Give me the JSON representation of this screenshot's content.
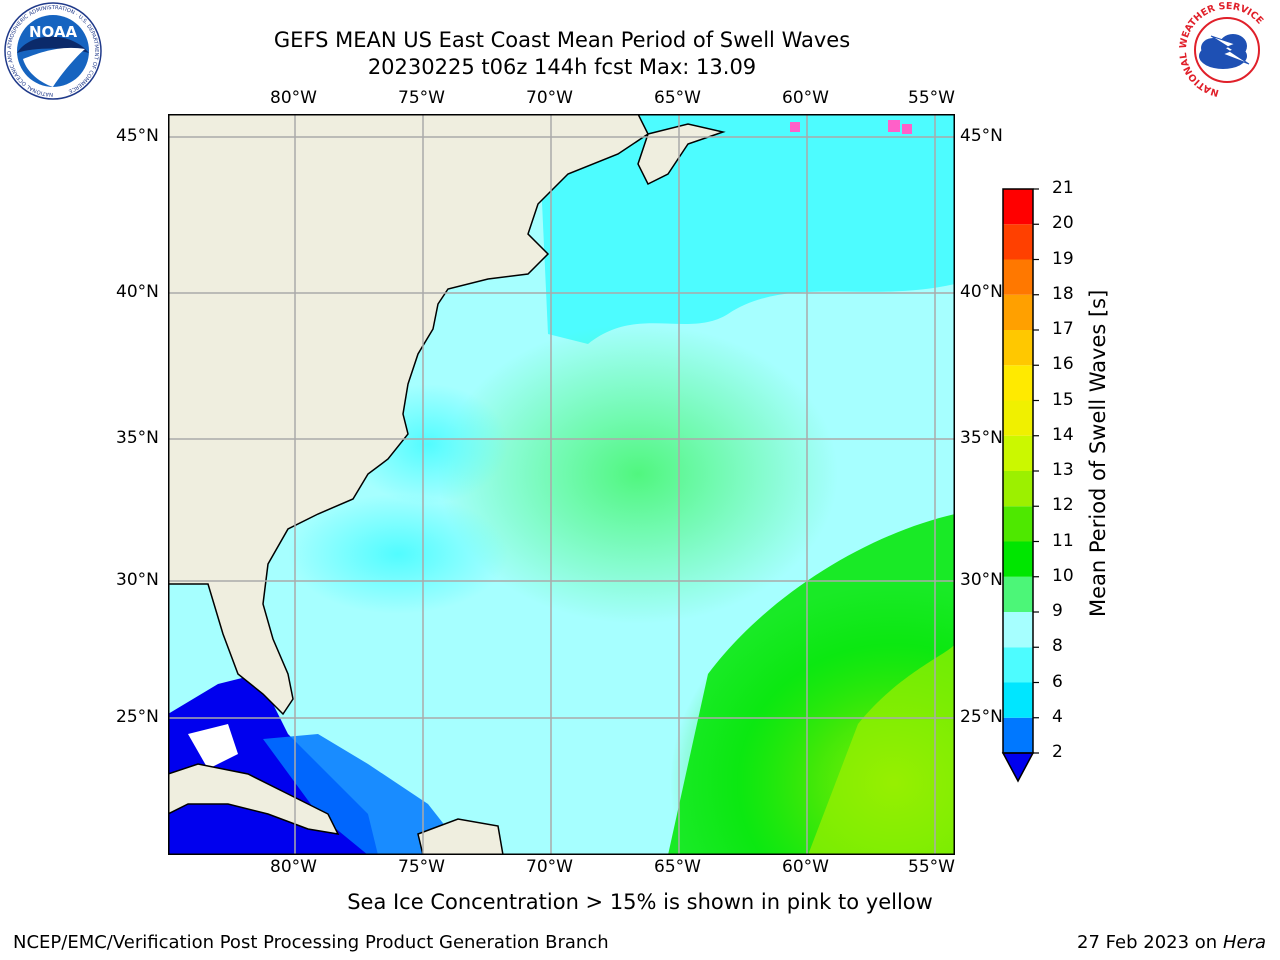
{
  "header": {
    "title_line1": "GEFS MEAN US East Coast Mean Period of Swell Waves",
    "title_line2": "20230225 t06z 144h fcst   Max: 13.09"
  },
  "logos": {
    "noaa_text": "NOAA",
    "noaa_ring_text": "NATIONAL OCEANIC AND ATMOSPHERIC ADMINISTRATION · U.S. DEPARTMENT OF COMMERCE",
    "nws_ring_text": "NATIONAL WEATHER SERVICE"
  },
  "map": {
    "lon_labels": [
      "80°W",
      "75°W",
      "70°W",
      "65°W",
      "60°W",
      "55°W"
    ],
    "lat_labels": [
      "45°N",
      "40°N",
      "35°N",
      "30°N",
      "25°N"
    ],
    "lon_range": [
      -85,
      -54.2
    ],
    "lat_range": [
      20.3,
      45.8
    ]
  },
  "colorbar": {
    "label": "Mean Period of Swell Waves [s]",
    "ticks": [
      "2",
      "4",
      "6",
      "8",
      "9",
      "10",
      "11",
      "12",
      "13",
      "14",
      "15",
      "16",
      "17",
      "18",
      "19",
      "20",
      "21"
    ],
    "colors": [
      "#0000ee",
      "#0078ff",
      "#00e6ff",
      "#4dfcff",
      "#a6ffff",
      "#4cf678",
      "#00e600",
      "#4ee800",
      "#9cf000",
      "#cbf800",
      "#f0f000",
      "#ffea00",
      "#ffc800",
      "#ffa000",
      "#ff7800",
      "#ff4000",
      "#ff0000"
    ],
    "extend": "min"
  },
  "notes": {
    "sea_ice": "Sea Ice Concentration > 15% is shown in pink to yellow"
  },
  "footer": {
    "left": "NCEP/EMC/Verification Post Processing Product Generation Branch",
    "date": "27 Feb 2023 on",
    "host": "Hera"
  }
}
